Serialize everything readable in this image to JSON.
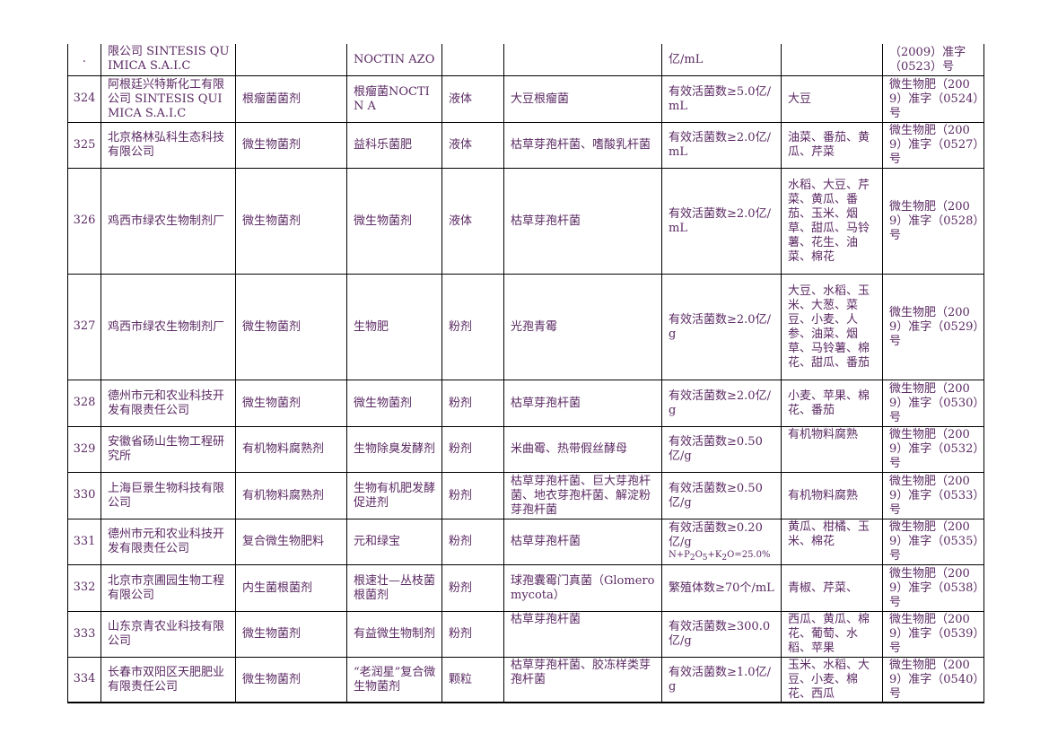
{
  "rows": [
    {
      "no": ".",
      "company": "限公司 SINTESIS QUIMICA S.A.I.C",
      "category": "",
      "product": "NOCTIN AZO",
      "form": "",
      "strain": "",
      "content": "亿/mL",
      "crops": "",
      "reg": "（2009）准字（0523）号"
    },
    {
      "no": "324",
      "company": "阿根廷兴特斯化工有限公司 SINTESIS QUIMICA S.A.I.C",
      "category": "根瘤菌菌剂",
      "product": "根瘤菌NOCTIN A",
      "form": "液体",
      "strain": "大豆根瘤菌",
      "content": "有效活菌数≥5.0亿/mL",
      "crops": "大豆",
      "reg": "微生物肥（2009）准字（0524）号"
    },
    {
      "no": "325",
      "company": "北京格林弘科生态科技有限公司",
      "category": "微生物菌剂",
      "product": "益科乐菌肥",
      "form": "液体",
      "strain": "枯草芽孢杆菌、嗜酸乳杆菌",
      "content": "有效活菌数≥2.0亿/mL",
      "crops": "油菜、番茄、黄瓜、芹菜",
      "reg": "微生物肥（2009）准字（0527）号"
    },
    {
      "no": "326",
      "company": "鸡西市绿农生物制剂厂",
      "category": "微生物菌剂",
      "product": "微生物菌剂",
      "form": "液体",
      "strain": "枯草芽孢杆菌",
      "content": "有效活菌数≥2.0亿/mL",
      "crops": "水稻、大豆、芹菜、黄瓜、番茄、玉米、烟草、甜瓜、马铃薯、花生、油菜、棉花",
      "reg": "微生物肥（2009）准字（0528）号"
    },
    {
      "no": "327",
      "company": "鸡西市绿农生物制剂厂",
      "category": "微生物菌剂",
      "product": "生物肥",
      "form": "粉剂",
      "strain": "光孢青霉",
      "content": "有效活菌数≥2.0亿/g",
      "crops": "大豆、水稻、玉米、大葱、菜豆、小麦、人参、油菜、烟草、马铃薯、棉花、甜瓜、番茄",
      "reg": "微生物肥（2009）准字（0529）号"
    },
    {
      "no": "328",
      "company": "德州市元和农业科技开发有限责任公司",
      "category": "微生物菌剂",
      "product": "微生物菌剂",
      "form": "粉剂",
      "strain": "枯草芽孢杆菌",
      "content": "有效活菌数≥2.0亿/g",
      "crops": "小麦、苹果、棉花、番茄",
      "reg": "微生物肥（2009）准字（0530）号"
    },
    {
      "no": "329",
      "company": "安徽省砀山生物工程研究所",
      "category": "有机物料腐熟剂",
      "product": "生物除臭发酵剂",
      "form": "粉剂",
      "strain": "米曲霉、热带假丝酵母",
      "content": "有效活菌数≥0.50亿/g",
      "crops": "有机物料腐熟",
      "reg": "微生物肥（2009）准字（0532）号"
    },
    {
      "no": "330",
      "company": "上海巨景生物科技有限公司",
      "category": "有机物料腐熟剂",
      "product": "生物有机肥发酵促进剂",
      "form": "粉剂",
      "strain": "枯草芽孢杆菌、巨大芽孢杆菌、地衣芽孢杆菌、解淀粉芽孢杆菌",
      "content": "有效活菌数≥0.50亿/g",
      "crops": "有机物料腐熟",
      "reg": "微生物肥（2009）准字（0533）号"
    },
    {
      "no": "331",
      "company": "德州市元和农业科技开发有限责任公司",
      "category": "复合微生物肥料",
      "product": "元和绿宝",
      "form": "粉剂",
      "strain": "枯草芽孢杆菌",
      "content": "有效活菌数≥0.20亿/g",
      "content_extra": "N+P2O5+K2O=25.0%",
      "crops": "黄瓜、柑橘、玉米、棉花",
      "reg": "微生物肥（2009）准字（0535）号"
    },
    {
      "no": "332",
      "company": "北京市京圃园生物工程有限公司",
      "category": "内生菌根菌剂",
      "product": "根速壮—丛枝菌根菌剂",
      "form": "粉剂",
      "strain": "球孢囊霉门真菌（Glomeromycota）",
      "content": "繁殖体数≥70个/mL",
      "crops": "青椒、芹菜、",
      "reg": "微生物肥（2009）准字（0538）号"
    },
    {
      "no": "333",
      "company": "山东京青农业科技有限公司",
      "category": "微生物菌剂",
      "product": "有益微生物制剂",
      "form": "粉剂",
      "strain": "枯草芽孢杆菌",
      "content": "有效活菌数≥300.0亿/g",
      "crops": "西瓜、黄瓜、棉花、葡萄、水稻、苹果",
      "reg": "微生物肥（2009）准字（0539）号"
    },
    {
      "no": "334",
      "company": "长春市双阳区天肥肥业有限责任公司",
      "category": "微生物菌剂",
      "product": "“老润星”复合微生物菌剂",
      "form": "颗粒",
      "strain": "枯草芽孢杆菌、胶冻样类芽孢杆菌",
      "content": "有效活菌数≥1.0亿/g",
      "crops": "玉米、水稻、大豆、小麦、棉花、西瓜",
      "reg": "微生物肥（2009）准字（0540）号"
    }
  ]
}
